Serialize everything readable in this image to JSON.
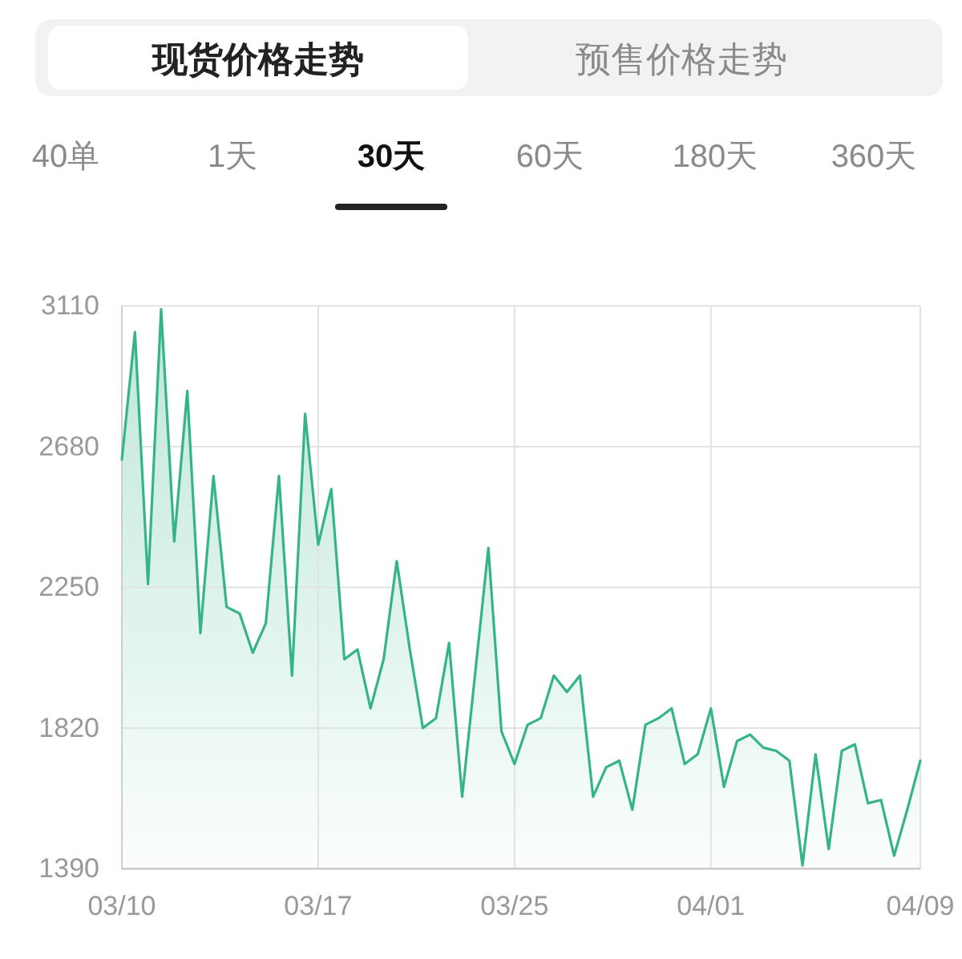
{
  "chart_data": {
    "type": "area",
    "title": "现货价格走势",
    "annotations": [
      "预售价格走势",
      "40单",
      "1天",
      "30天",
      "60天",
      "180天",
      "360天"
    ],
    "categories": [
      "03/10",
      null,
      null,
      null,
      null,
      null,
      null,
      null,
      null,
      null,
      null,
      null,
      null,
      null,
      null,
      "03/17",
      null,
      null,
      null,
      null,
      null,
      null,
      null,
      null,
      null,
      null,
      null,
      null,
      null,
      null,
      "03/25",
      null,
      null,
      null,
      null,
      null,
      null,
      null,
      null,
      null,
      null,
      null,
      null,
      null,
      null,
      "04/01",
      null,
      null,
      null,
      null,
      null,
      null,
      null,
      null,
      null,
      null,
      null,
      null,
      null,
      null,
      null,
      "04/09"
    ],
    "values": [
      2640,
      3030,
      2260,
      3100,
      2390,
      2850,
      2110,
      2590,
      2190,
      2170,
      2050,
      2140,
      2590,
      1980,
      2780,
      2380,
      2550,
      2030,
      2060,
      1880,
      2030,
      2330,
      2060,
      1820,
      1850,
      2080,
      1610,
      1990,
      2370,
      1810,
      1710,
      1830,
      1850,
      1980,
      1930,
      1980,
      1610,
      1700,
      1720,
      1570,
      1830,
      1850,
      1880,
      1710,
      1740,
      1880,
      1640,
      1780,
      1800,
      1760,
      1750,
      1720,
      1400,
      1740,
      1450,
      1750,
      1770,
      1590,
      1600,
      1430,
      1570,
      1720
    ],
    "color": "#35b487",
    "ylim": [
      1390,
      3110
    ],
    "yticks": [
      1390,
      1820,
      2250,
      2680,
      3110
    ],
    "grid": true
  }
}
